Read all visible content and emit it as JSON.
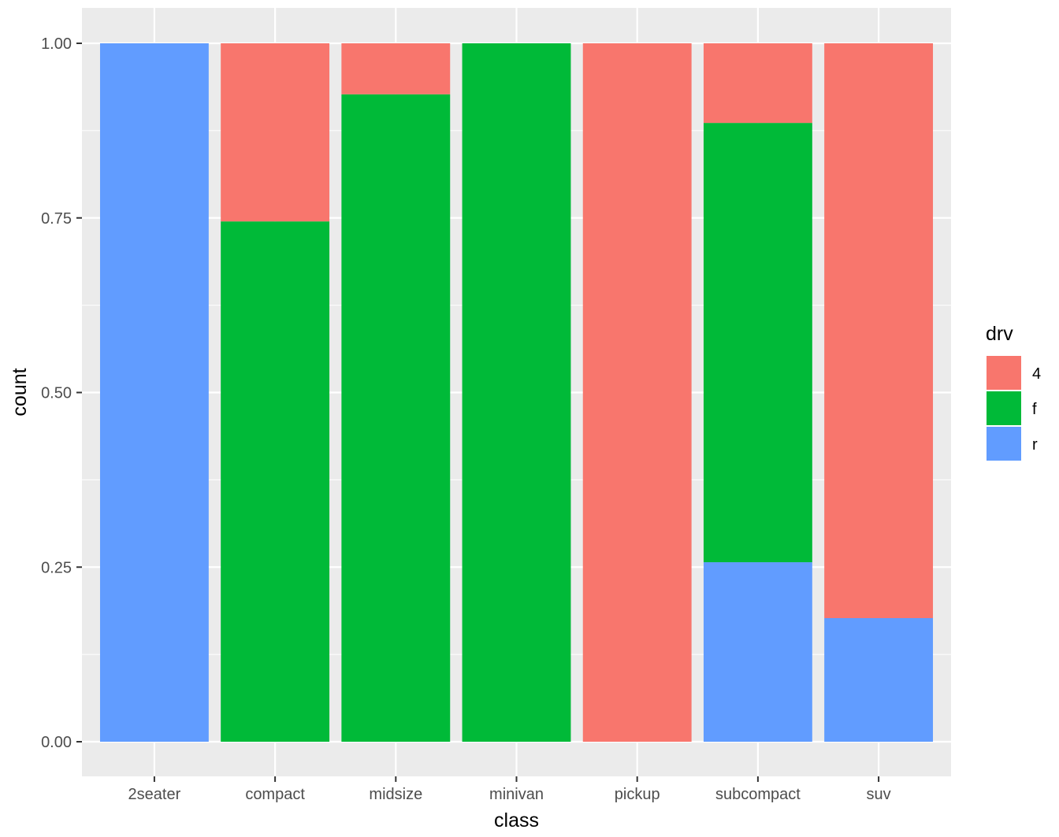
{
  "chart_data": {
    "type": "bar",
    "stacked": true,
    "position": "fill",
    "xlabel": "class",
    "ylabel": "count",
    "ylim": [
      0,
      1
    ],
    "yticks": [
      "0.00",
      "0.25",
      "0.50",
      "0.75",
      "1.00"
    ],
    "categories": [
      "2seater",
      "compact",
      "midsize",
      "minivan",
      "pickup",
      "subcompact",
      "suv"
    ],
    "series": [
      {
        "name": "4",
        "color": "#F8766D",
        "values": [
          0.0,
          0.255,
          0.073,
          0.0,
          1.0,
          0.114,
          0.823
        ]
      },
      {
        "name": "f",
        "color": "#00BA38",
        "values": [
          0.0,
          0.745,
          0.927,
          1.0,
          0.0,
          0.629,
          0.0
        ]
      },
      {
        "name": "r",
        "color": "#619CFF",
        "values": [
          1.0,
          0.0,
          0.0,
          0.0,
          0.0,
          0.257,
          0.177
        ]
      }
    ],
    "legend": {
      "title": "drv",
      "placement": "right"
    },
    "grid": true,
    "panel_background": "#EBEBEB",
    "grid_color": "#FFFFFF"
  }
}
